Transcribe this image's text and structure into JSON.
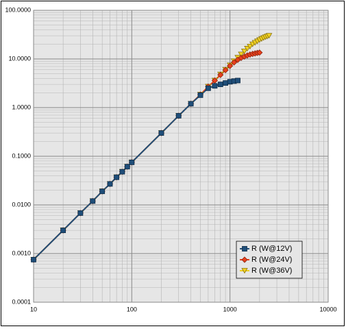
{
  "chart_data": {
    "type": "line",
    "xlim": [
      10,
      10000
    ],
    "xticks": [
      10,
      100,
      1000,
      10000
    ],
    "xscale": "log",
    "ylim": [
      0.0001,
      100
    ],
    "yscale": "log",
    "yticks": [
      {
        "value": 0.0001,
        "label": "0.0001"
      },
      {
        "value": 0.001,
        "label": "0.0010"
      },
      {
        "value": 0.01,
        "label": "0.0100"
      },
      {
        "value": 0.1,
        "label": "0.1000"
      },
      {
        "value": 1,
        "label": "1.0000"
      },
      {
        "value": 10,
        "label": "10.0000"
      },
      {
        "value": 100,
        "label": "100.0000"
      }
    ],
    "grid": true,
    "minor_grid": true,
    "legend": "lower right",
    "series": [
      {
        "name": "R (W@12V)",
        "color": "#1f4e79",
        "marker": "square",
        "x": [
          10,
          20,
          30,
          40,
          50,
          60,
          70,
          80,
          90,
          100,
          200,
          300,
          400,
          500,
          600,
          700,
          800,
          900,
          1000,
          1100,
          1200
        ],
        "values": [
          0.00075,
          0.003,
          0.0068,
          0.012,
          0.019,
          0.027,
          0.037,
          0.048,
          0.061,
          0.075,
          0.3,
          0.68,
          1.2,
          1.8,
          2.5,
          2.8,
          3.0,
          3.2,
          3.4,
          3.5,
          3.6
        ]
      },
      {
        "name": "R (W@24V)",
        "color": "#e8401c",
        "marker": "diamond",
        "x": [
          10,
          20,
          30,
          40,
          50,
          60,
          70,
          80,
          90,
          100,
          200,
          300,
          400,
          500,
          600,
          700,
          800,
          900,
          1000,
          1100,
          1200,
          1300,
          1400,
          1500,
          1600,
          1700,
          1800,
          1900,
          2000
        ],
        "values": [
          0.00075,
          0.003,
          0.0068,
          0.012,
          0.019,
          0.027,
          0.037,
          0.048,
          0.061,
          0.075,
          0.3,
          0.68,
          1.2,
          1.85,
          2.7,
          3.6,
          4.7,
          5.9,
          7.2,
          8.5,
          9.6,
          10.5,
          11.2,
          11.8,
          12.3,
          12.7,
          13.0,
          13.3,
          13.5
        ]
      },
      {
        "name": "R (W@36V)",
        "color": "#f0d020",
        "marker": "triangle-down",
        "x": [
          10,
          20,
          30,
          40,
          50,
          60,
          70,
          80,
          90,
          100,
          200,
          300,
          400,
          500,
          600,
          700,
          800,
          900,
          1000,
          1100,
          1200,
          1300,
          1400,
          1500,
          1600,
          1700,
          1800,
          1900,
          2000,
          2100,
          2200,
          2300,
          2400,
          2500
        ],
        "values": [
          0.00075,
          0.003,
          0.0068,
          0.012,
          0.019,
          0.027,
          0.037,
          0.048,
          0.061,
          0.075,
          0.3,
          0.68,
          1.2,
          1.85,
          2.7,
          3.6,
          4.8,
          6.0,
          7.4,
          9.0,
          10.6,
          12.4,
          14.3,
          16.3,
          18,
          20,
          21.5,
          23,
          24.5,
          25.8,
          27,
          28,
          29,
          30
        ]
      }
    ]
  }
}
